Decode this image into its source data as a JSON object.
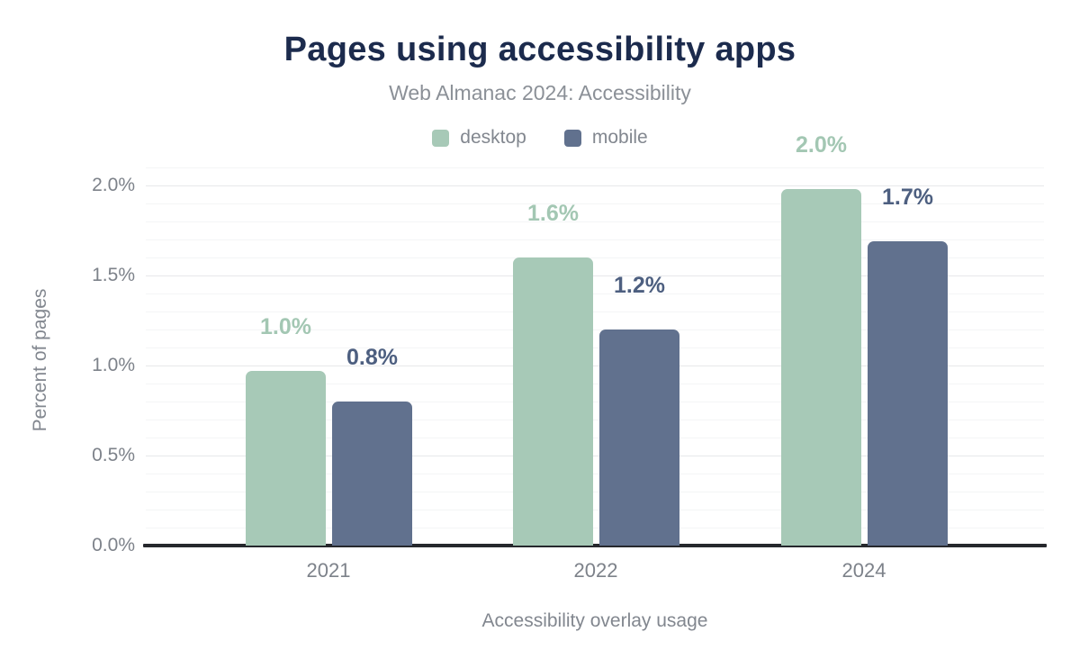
{
  "chart_data": {
    "type": "bar",
    "title": "Pages using accessibility apps",
    "subtitle": "Web Almanac 2024: Accessibility",
    "xlabel": "Accessibility overlay usage",
    "ylabel": "Percent of pages",
    "categories": [
      "2021",
      "2022",
      "2024"
    ],
    "series": [
      {
        "name": "desktop",
        "color": "#a7c9b7",
        "label_color": "#a3c7b3",
        "values": [
          0.97,
          1.6,
          1.98
        ],
        "labels": [
          "1.0%",
          "1.6%",
          "2.0%"
        ]
      },
      {
        "name": "mobile",
        "color": "#61718e",
        "label_color": "#4d5f80",
        "values": [
          0.8,
          1.2,
          1.69
        ],
        "labels": [
          "0.8%",
          "1.2%",
          "1.7%"
        ]
      }
    ],
    "y_axis": {
      "ticks": [
        {
          "label": "0.0%",
          "value": 0
        },
        {
          "label": "0.5%",
          "value": 0.5
        },
        {
          "label": "1.0%",
          "value": 1.0
        },
        {
          "label": "1.5%",
          "value": 1.5
        },
        {
          "label": "2.0%",
          "value": 2.0
        }
      ],
      "min": 0,
      "max": 2.1,
      "minor_step": 0.1,
      "major_step": 0.5
    },
    "legend_position": "top-center",
    "grid": true,
    "colors": {
      "title": "#1c2b4d",
      "subtitle": "#8b9097",
      "axis_text": "#82878f",
      "tick_text": "#7d828a",
      "axis_line": "#26282d",
      "grid_major": "#e7e8ea",
      "grid_minor": "#f4f5f6",
      "background": "#ffffff"
    }
  }
}
